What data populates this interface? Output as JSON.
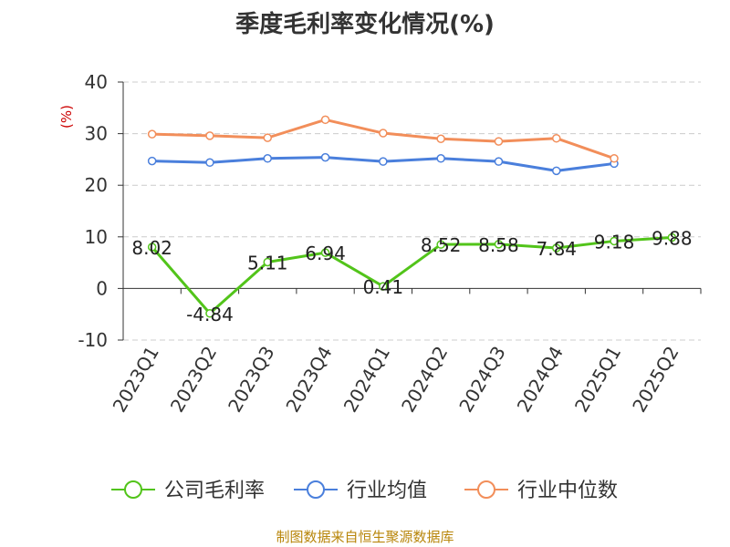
{
  "title": "季度毛利率变化情况(%)",
  "footer": "制图数据来自恒生聚源数据库",
  "chart_data": {
    "type": "line",
    "categories": [
      "2023Q1",
      "2023Q2",
      "2023Q3",
      "2023Q4",
      "2024Q1",
      "2024Q2",
      "2024Q3",
      "2024Q4",
      "2025Q1",
      "2025Q2"
    ],
    "ylabel": "(%)",
    "ylim": [
      -10,
      40
    ],
    "yticks": [
      -10,
      0,
      10,
      20,
      30,
      40
    ],
    "grid": true,
    "legend_position": "bottom",
    "series": [
      {
        "name": "公司毛利率",
        "color": "#52c41a",
        "values": [
          8.02,
          -4.84,
          5.11,
          6.94,
          0.41,
          8.52,
          8.58,
          7.84,
          9.18,
          9.88
        ],
        "labels": [
          "8.02",
          "-4.84",
          "5.11",
          "6.94",
          "0.41",
          "8.52",
          "8.58",
          "7.84",
          "9.18",
          "9.88"
        ]
      },
      {
        "name": "行业均值",
        "color": "#4a7fdc",
        "values": [
          24.7,
          24.4,
          25.2,
          25.4,
          24.6,
          25.2,
          24.6,
          22.8,
          24.2,
          null
        ]
      },
      {
        "name": "行业中位数",
        "color": "#f28e5a",
        "values": [
          29.9,
          29.6,
          29.2,
          32.7,
          30.1,
          29.0,
          28.5,
          29.1,
          25.2,
          null
        ]
      }
    ]
  }
}
